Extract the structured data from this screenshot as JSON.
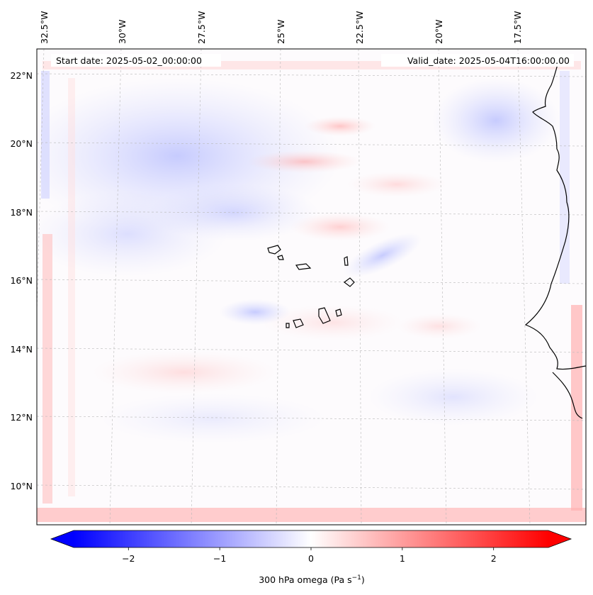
{
  "map": {
    "lon_labels": [
      "32.5°W",
      "30°W",
      "27.5°W",
      "25°W",
      "22.5°W",
      "20°W",
      "17.5°W"
    ],
    "lat_labels": [
      "22°N",
      "20°N",
      "18°N",
      "16°N",
      "14°N",
      "12°N",
      "10°N"
    ],
    "start_date": "Start date: 2025-05-02_00:00:00",
    "valid_date": "Valid_date: 2025-05-04T16:00:00.00",
    "field": "300 hPa omega"
  },
  "colorbar": {
    "ticks": [
      "−2",
      "−1",
      "0",
      "1",
      "2"
    ],
    "tick_values": [
      -2,
      -1,
      0,
      1,
      2
    ],
    "range": [
      -2.6,
      2.6
    ],
    "label_main": "300 hPa omega (Pa s",
    "label_sup": "−1",
    "label_end": ")",
    "colormap": "bwr",
    "color_min": "#0000ff",
    "color_mid": "#ffffff",
    "color_max": "#ff0000"
  },
  "styles": {
    "coastline": "#000000",
    "gridline": "#b8b8b8"
  }
}
